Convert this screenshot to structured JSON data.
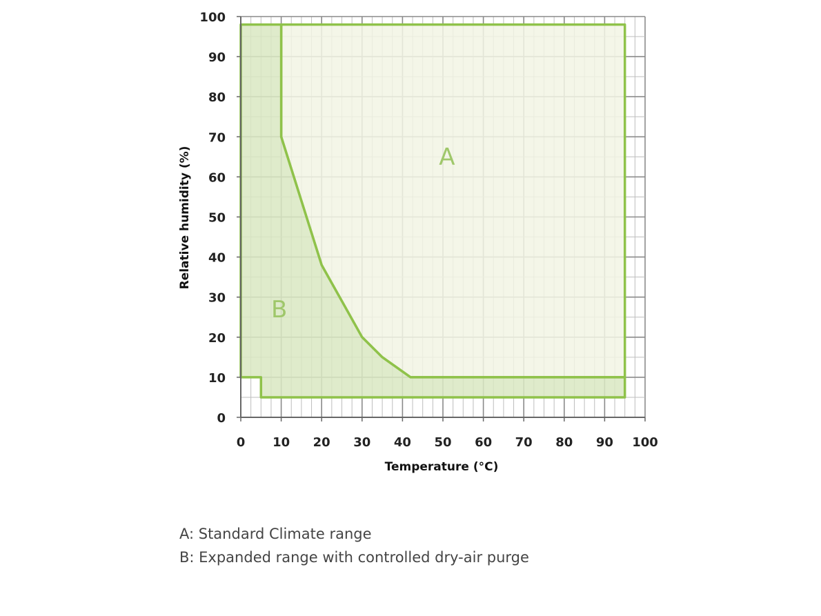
{
  "chart_data": {
    "type": "area",
    "xlabel": "Temperature (°C)",
    "ylabel": "Relative humidity (%)",
    "xlim": [
      0,
      100
    ],
    "ylim": [
      0,
      100
    ],
    "x_ticks": [
      0,
      10,
      20,
      30,
      40,
      50,
      60,
      70,
      80,
      90,
      100
    ],
    "y_ticks": [
      0,
      10,
      20,
      30,
      40,
      50,
      60,
      70,
      80,
      90,
      100
    ],
    "grid": true,
    "regions": [
      {
        "name": "A",
        "boundary": [
          [
            10,
            98
          ],
          [
            95,
            98
          ],
          [
            95,
            10
          ],
          [
            42,
            10
          ],
          [
            35,
            15
          ],
          [
            30,
            20
          ],
          [
            20,
            38
          ],
          [
            10,
            70
          ]
        ]
      },
      {
        "name": "B",
        "boundary": [
          [
            0,
            98
          ],
          [
            10,
            98
          ],
          [
            10,
            70
          ],
          [
            20,
            38
          ],
          [
            30,
            20
          ],
          [
            35,
            15
          ],
          [
            42,
            10
          ],
          [
            95,
            10
          ],
          [
            95,
            5
          ],
          [
            5,
            5
          ],
          [
            5,
            10
          ],
          [
            0,
            10
          ]
        ]
      }
    ],
    "colors": {
      "outline": "#8fc24a",
      "region_a_fill": "#f2f5e4",
      "region_b_fill": "#d9e8c2",
      "grid": "#9a9a9a"
    },
    "legend": [
      "A: Standard Climate range",
      "B: Expanded range with controlled dry-air purge"
    ]
  }
}
